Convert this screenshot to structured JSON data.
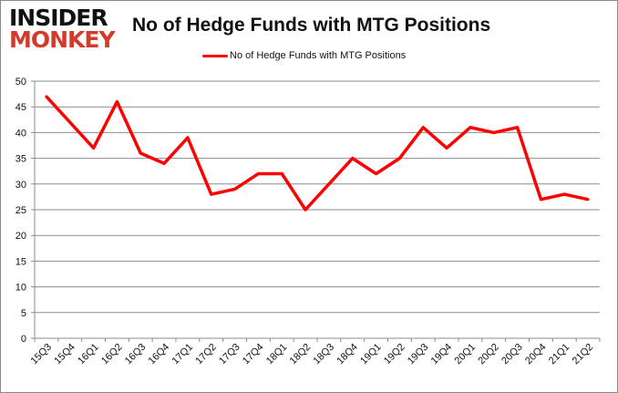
{
  "logo": {
    "line1": "INSIDER",
    "line2": "MONKEY"
  },
  "chart_data": {
    "type": "line",
    "title": "No of Hedge Funds with MTG Positions",
    "categories": [
      "15Q3",
      "15Q4",
      "16Q1",
      "16Q2",
      "16Q3",
      "16Q4",
      "17Q1",
      "17Q2",
      "17Q3",
      "17Q4",
      "18Q1",
      "18Q2",
      "18Q3",
      "18Q4",
      "19Q1",
      "19Q2",
      "19Q3",
      "19Q4",
      "20Q1",
      "20Q2",
      "20Q3",
      "20Q4",
      "21Q1",
      "21Q2"
    ],
    "series": [
      {
        "name": "No of Hedge Funds with MTG Positions",
        "color": "#ff0000",
        "values": [
          47,
          42,
          37,
          46,
          36,
          34,
          39,
          28,
          29,
          32,
          32,
          25,
          30,
          35,
          32,
          35,
          41,
          37,
          41,
          40,
          41,
          27,
          28,
          27
        ]
      }
    ],
    "ylim": [
      0,
      50
    ],
    "yticks": [
      0,
      5,
      10,
      15,
      20,
      25,
      30,
      35,
      40,
      45,
      50
    ],
    "grid": true,
    "legend": "top-center",
    "xlabel": "",
    "ylabel": ""
  }
}
